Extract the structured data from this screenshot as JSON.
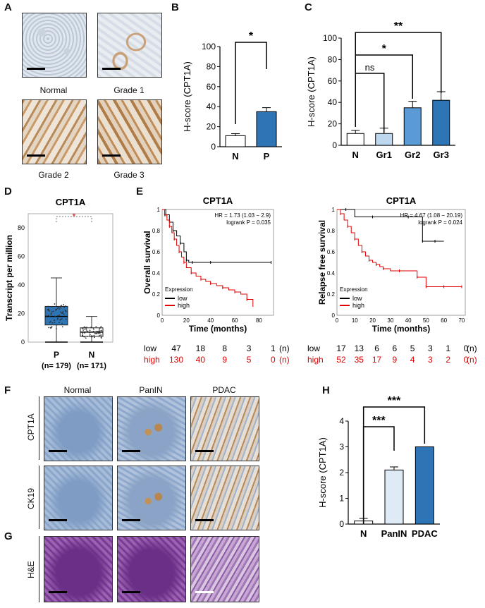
{
  "panels": {
    "A": "A",
    "B": "B",
    "C": "C",
    "D": "D",
    "E": "E",
    "F": "F",
    "G": "G",
    "H": "H"
  },
  "panel_a": {
    "captions": [
      "Normal",
      "Grade 1",
      "Grade 2",
      "Grade 3"
    ]
  },
  "panel_f": {
    "columns": [
      "Normal",
      "PanIN",
      "PDAC"
    ],
    "rows": [
      "CPT1A",
      "CK19",
      "H&E"
    ]
  },
  "chart_data": [
    {
      "id": "B",
      "type": "bar",
      "categories": [
        "N",
        "P"
      ],
      "values": [
        11,
        35
      ],
      "errors": [
        2,
        4
      ],
      "fill": [
        "#ffffff",
        "#2e75b6"
      ],
      "ylabel": "H-score (CPT1A)",
      "ylim": [
        0,
        100
      ],
      "yticks": [
        0,
        20,
        40,
        60,
        80,
        100
      ],
      "significance": [
        {
          "from": "N",
          "to": "P",
          "label": "*"
        }
      ]
    },
    {
      "id": "C",
      "type": "bar",
      "categories": [
        "N",
        "Gr1",
        "Gr2",
        "Gr3"
      ],
      "values": [
        11,
        11,
        35,
        42
      ],
      "errors": [
        3,
        5,
        6,
        8
      ],
      "fill": [
        "#ffffff",
        "#bdd7ee",
        "#5b9bd5",
        "#2e75b6"
      ],
      "ylabel": "H-score (CPT1A)",
      "ylim": [
        0,
        100
      ],
      "yticks": [
        0,
        20,
        40,
        60,
        80,
        100
      ],
      "significance": [
        {
          "from": "N",
          "to": "Gr1",
          "label": "ns"
        },
        {
          "from": "N",
          "to": "Gr2",
          "label": "*"
        },
        {
          "from": "N",
          "to": "Gr3",
          "label": "**"
        }
      ]
    },
    {
      "id": "D",
      "type": "boxplot",
      "title": "CPT1A",
      "ylabel": "Transcript per million",
      "ylim": [
        0,
        90
      ],
      "yticks": [
        0,
        20,
        40,
        60,
        80
      ],
      "groups": [
        {
          "name": "P",
          "n_label": "(n= 179)",
          "median": 18,
          "q1": 12,
          "q3": 25,
          "whisker_low": 0,
          "whisker_high": 45,
          "color": "#2e75b6"
        },
        {
          "name": "N",
          "n_label": "(n= 171)",
          "median": 7,
          "q1": 4,
          "q3": 10,
          "whisker_low": 0,
          "whisker_high": 18,
          "color": "#ffffff"
        }
      ],
      "significance": "*"
    },
    {
      "id": "E1",
      "type": "line",
      "title": "CPT1A",
      "xlabel": "Time (months)",
      "ylabel": "Overall survival",
      "xlim": [
        0,
        92
      ],
      "ylim": [
        0,
        1
      ],
      "xticks": [
        0,
        20,
        40,
        60,
        80
      ],
      "yticks": [
        0,
        0.2,
        0.4,
        0.6,
        0.8,
        1
      ],
      "stats": [
        "HR = 1.73 (1.03 − 2.9)",
        "logrank P = 0.035"
      ],
      "legend": {
        "title": "Expression",
        "entries": [
          "low",
          "high"
        ]
      },
      "series": [
        {
          "name": "low",
          "color": "#000000",
          "x": [
            0,
            3,
            6,
            9,
            12,
            15,
            18,
            20,
            22,
            25,
            30,
            40,
            60,
            90
          ],
          "y": [
            1,
            0.95,
            0.88,
            0.8,
            0.75,
            0.68,
            0.6,
            0.52,
            0.5,
            0.5,
            0.5,
            0.5,
            0.5,
            0.5
          ]
        },
        {
          "name": "high",
          "color": "#e00000",
          "x": [
            0,
            2,
            4,
            6,
            8,
            10,
            12,
            14,
            16,
            18,
            20,
            24,
            28,
            32,
            36,
            40,
            45,
            50,
            55,
            60,
            65,
            70,
            75
          ],
          "y": [
            1,
            0.95,
            0.9,
            0.84,
            0.78,
            0.72,
            0.66,
            0.6,
            0.55,
            0.5,
            0.45,
            0.4,
            0.37,
            0.34,
            0.32,
            0.3,
            0.28,
            0.26,
            0.24,
            0.22,
            0.2,
            0.15,
            0.08
          ]
        }
      ],
      "risk_table": {
        "label": "(n)",
        "times": [
          0,
          20,
          40,
          60,
          80
        ],
        "rows": [
          {
            "name": "low",
            "values": [
              "47",
              "18",
              "8",
              "3",
              "1"
            ]
          },
          {
            "name": "high",
            "values": [
              "130",
              "40",
              "9",
              "5",
              "0"
            ]
          }
        ]
      }
    },
    {
      "id": "E2",
      "type": "line",
      "title": "CPT1A",
      "xlabel": "Time (months)",
      "ylabel": "Relapse free survival",
      "xlim": [
        0,
        72
      ],
      "ylim": [
        0,
        1
      ],
      "xticks": [
        0,
        10,
        20,
        30,
        40,
        50,
        60,
        70
      ],
      "yticks": [
        0,
        0.2,
        0.4,
        0.6,
        0.8,
        1
      ],
      "stats": [
        "HR = 4.67 (1.08 − 20.19)",
        "logrank P = 0.024"
      ],
      "legend": {
        "title": "Expression",
        "entries": [
          "low",
          "high"
        ]
      },
      "series": [
        {
          "name": "low",
          "color": "#000000",
          "x": [
            0,
            5,
            10,
            20,
            30,
            40,
            45,
            48,
            50,
            55,
            60
          ],
          "y": [
            1,
            1,
            0.93,
            0.93,
            0.93,
            0.93,
            0.93,
            0.7,
            0.7,
            0.7,
            0.7
          ]
        },
        {
          "name": "high",
          "color": "#e00000",
          "x": [
            0,
            2,
            4,
            6,
            8,
            10,
            12,
            14,
            16,
            18,
            20,
            22,
            24,
            26,
            30,
            35,
            40,
            45,
            48,
            50,
            55,
            60,
            65,
            70
          ],
          "y": [
            1,
            0.96,
            0.9,
            0.84,
            0.78,
            0.72,
            0.66,
            0.6,
            0.56,
            0.52,
            0.5,
            0.48,
            0.46,
            0.44,
            0.42,
            0.42,
            0.42,
            0.36,
            0.36,
            0.27,
            0.27,
            0.27,
            0.27,
            0.27
          ]
        }
      ],
      "risk_table": {
        "label": "(n)",
        "times": [
          0,
          10,
          20,
          30,
          40,
          50,
          60,
          70
        ],
        "rows": [
          {
            "name": "low",
            "values": [
              "17",
              "13",
              "6",
              "6",
              "5",
              "3",
              "1",
              "0"
            ]
          },
          {
            "name": "high",
            "values": [
              "52",
              "35",
              "17",
              "9",
              "4",
              "3",
              "2",
              "0"
            ]
          }
        ]
      }
    },
    {
      "id": "H",
      "type": "bar",
      "categories": [
        "N",
        "PanIN",
        "PDAC"
      ],
      "values": [
        0.12,
        2.1,
        3.0
      ],
      "errors": [
        0.1,
        0.12,
        0
      ],
      "fill": [
        "#ffffff",
        "#deebf7",
        "#2e75b6"
      ],
      "ylabel": "H-score (CPT1A)",
      "ylim": [
        0,
        4
      ],
      "yticks": [
        0,
        1,
        2,
        3,
        4
      ],
      "significance": [
        {
          "from": "N",
          "to": "PanIN",
          "label": "***"
        },
        {
          "from": "N",
          "to": "PDAC",
          "label": "***"
        }
      ]
    }
  ]
}
